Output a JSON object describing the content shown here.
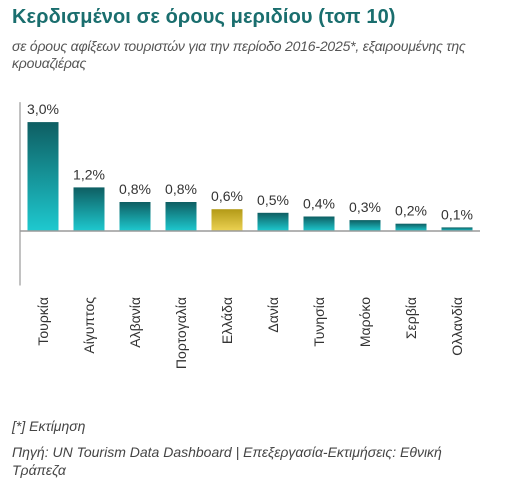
{
  "title": "Κερδισμένοι σε όρους μεριδίου (τοπ 10)",
  "subtitle": "σε όρους αφίξεων τουριστών για την περίοδο 2016-2025*, εξαιρουμένης της κρουαζιέρας",
  "footnote": "[*] Εκτίμηση",
  "source": "Πηγή: UN Tourism Data Dashboard | Επεξεργασία-Εκτιμήσεις: Εθνική Τράπεζα",
  "colors": {
    "bar_top": "#0e5e62",
    "bar_bottom": "#1ec9cf",
    "highlight_top": "#b39a17",
    "highlight_bottom": "#ecd253",
    "axis": "#9a9a9a"
  },
  "chart_data": {
    "type": "bar",
    "categories": [
      "Τουρκία",
      "Αίγυπτος",
      "Αλβανία",
      "Πορτογαλία",
      "Ελλάδα",
      "Δανία",
      "Τυνησία",
      "Μαρόκο",
      "Σερβία",
      "Ολλανδία"
    ],
    "values": [
      3.0,
      1.2,
      0.8,
      0.8,
      0.6,
      0.5,
      0.4,
      0.3,
      0.2,
      0.1
    ],
    "data_labels": [
      "3,0%",
      "1,2%",
      "0,8%",
      "0,8%",
      "0,6%",
      "0,5%",
      "0,4%",
      "0,3%",
      "0,2%",
      "0,1%"
    ],
    "highlight_category": "Ελλάδα",
    "ylim": [
      -1.5,
      3.0
    ],
    "grid": false,
    "legend": "none",
    "xlabel": "",
    "ylabel": ""
  }
}
